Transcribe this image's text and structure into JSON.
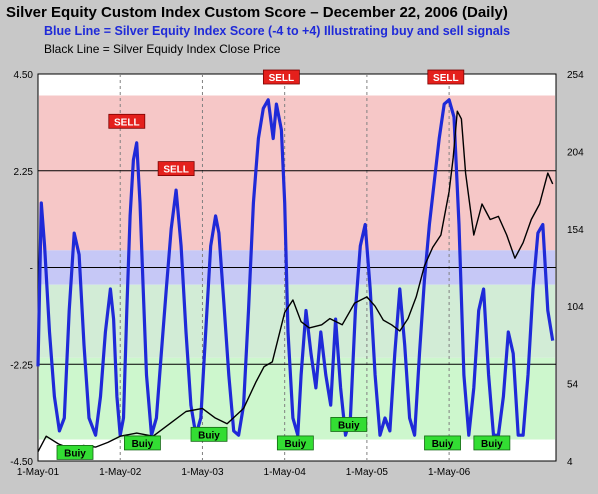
{
  "chart_data": {
    "type": "line",
    "title": "Silver Equity Custom Index Custom Score – December 22, 2006 (Daily)",
    "subtitle_blue": "Blue Line = Silver Equity Index Score (-4 to +4) Illustrating buy and sell signals",
    "subtitle_black": "Black Line = Silver Equidy Index Close Price",
    "x_ticks": [
      "1-May-01",
      "1-May-02",
      "1-May-03",
      "1-May-04",
      "1-May-05",
      "1-May-06"
    ],
    "y_left": {
      "ticks": [
        "4.50",
        "2.25",
        "-",
        "-2.25",
        "-4.50"
      ],
      "range": [
        -4.5,
        4.5
      ]
    },
    "y_right": {
      "ticks": [
        "254",
        "204",
        "154",
        "104",
        "54",
        "4"
      ],
      "range": [
        4,
        254
      ]
    },
    "x_range": [
      0,
      6.3
    ],
    "bands": [
      {
        "from": 0.4,
        "to": 4.0,
        "color": "#f6c7c7"
      },
      {
        "from": -0.4,
        "to": 0.4,
        "color": "#c6c8f6"
      },
      {
        "from": -2.1,
        "to": -0.4,
        "color": "#d2ecd6"
      },
      {
        "from": -4.0,
        "to": -2.1,
        "color": "#cdf7cd"
      }
    ],
    "reference_lines": [
      2.25,
      0,
      -2.25
    ],
    "series": [
      {
        "color": "#1f2ad8",
        "axis": "left",
        "x": [
          0.0,
          0.04,
          0.08,
          0.14,
          0.2,
          0.26,
          0.32,
          0.38,
          0.44,
          0.5,
          0.56,
          0.62,
          0.7,
          0.76,
          0.82,
          0.88,
          0.92,
          0.96,
          1.0,
          1.04,
          1.08,
          1.12,
          1.16,
          1.2,
          1.24,
          1.28,
          1.32,
          1.38,
          1.44,
          1.5,
          1.56,
          1.62,
          1.68,
          1.74,
          1.8,
          1.86,
          1.92,
          1.98,
          2.04,
          2.1,
          2.16,
          2.2,
          2.26,
          2.32,
          2.38,
          2.44,
          2.5,
          2.56,
          2.62,
          2.68,
          2.74,
          2.8,
          2.86,
          2.9,
          2.96,
          3.0,
          3.04,
          3.1,
          3.16,
          3.2,
          3.26,
          3.32,
          3.38,
          3.44,
          3.5,
          3.56,
          3.62,
          3.68,
          3.74,
          3.8,
          3.86,
          3.92,
          3.98,
          4.04,
          4.1,
          4.16,
          4.22,
          4.28,
          4.34,
          4.4,
          4.46,
          4.52,
          4.58,
          4.64,
          4.7,
          4.76,
          4.82,
          4.88,
          4.94,
          5.0,
          5.06,
          5.12,
          5.18,
          5.24,
          5.3,
          5.36,
          5.42,
          5.48,
          5.54,
          5.6,
          5.66,
          5.72,
          5.78,
          5.84,
          5.9,
          5.96,
          6.02,
          6.08,
          6.14,
          6.2,
          6.26
        ],
        "y": [
          -2.3,
          1.5,
          0.5,
          -1.5,
          -3.0,
          -3.8,
          -3.5,
          -1.0,
          0.8,
          0.3,
          -1.8,
          -3.5,
          -3.9,
          -3.0,
          -1.5,
          -0.5,
          -1.2,
          -3.0,
          -3.9,
          -3.5,
          -1.0,
          1.2,
          2.5,
          2.9,
          1.5,
          -0.5,
          -2.5,
          -3.9,
          -3.5,
          -2.0,
          -0.5,
          0.9,
          1.8,
          0.5,
          -1.5,
          -3.2,
          -3.9,
          -3.5,
          -1.5,
          0.5,
          1.2,
          0.8,
          -0.8,
          -2.5,
          -3.8,
          -3.9,
          -3.2,
          -1.0,
          1.5,
          3.0,
          3.7,
          3.9,
          3.0,
          3.8,
          3.2,
          1.5,
          -1.5,
          -3.5,
          -3.9,
          -2.5,
          -1.0,
          -2.0,
          -2.8,
          -1.5,
          -2.5,
          -3.2,
          -1.2,
          -2.8,
          -3.9,
          -3.5,
          -1.0,
          0.5,
          1.0,
          -0.5,
          -2.5,
          -3.9,
          -3.5,
          -3.8,
          -2.0,
          -0.5,
          -1.8,
          -3.5,
          -3.9,
          -2.0,
          -0.3,
          1.0,
          2.0,
          3.0,
          3.8,
          3.9,
          3.5,
          1.0,
          -2.5,
          -3.9,
          -2.8,
          -1.0,
          -0.5,
          -2.5,
          -3.9,
          -3.9,
          -3.0,
          -1.5,
          -2.0,
          -3.9,
          -3.9,
          -2.5,
          -0.5,
          0.8,
          1.0,
          -1.0,
          -1.7
        ]
      },
      {
        "color": "#000000",
        "axis": "right",
        "x": [
          0.0,
          0.1,
          0.25,
          0.4,
          0.55,
          0.7,
          0.85,
          1.0,
          1.2,
          1.4,
          1.6,
          1.8,
          2.0,
          2.15,
          2.3,
          2.5,
          2.65,
          2.75,
          2.85,
          3.0,
          3.1,
          3.2,
          3.3,
          3.45,
          3.55,
          3.7,
          3.85,
          4.0,
          4.1,
          4.2,
          4.3,
          4.4,
          4.5,
          4.6,
          4.7,
          4.8,
          4.9,
          5.0,
          5.05,
          5.1,
          5.15,
          5.2,
          5.3,
          5.4,
          5.5,
          5.6,
          5.7,
          5.8,
          5.9,
          6.0,
          6.1,
          6.2,
          6.26
        ],
        "y": [
          10,
          20,
          15,
          12,
          14,
          13,
          16,
          20,
          22,
          20,
          28,
          36,
          38,
          32,
          28,
          38,
          55,
          65,
          68,
          100,
          108,
          94,
          90,
          92,
          96,
          92,
          106,
          110,
          104,
          95,
          92,
          88,
          96,
          110,
          130,
          142,
          150,
          178,
          200,
          230,
          225,
          190,
          150,
          170,
          160,
          162,
          150,
          135,
          145,
          160,
          170,
          190,
          183
        ]
      }
    ],
    "labels": [
      {
        "text": "SELL",
        "kind": "sell",
        "x": 1.08,
        "y": 3.4
      },
      {
        "text": "SELL",
        "kind": "sell",
        "x": 1.68,
        "y": 2.3
      },
      {
        "text": "SELL",
        "kind": "sell",
        "x": 2.96,
        "y": 4.43
      },
      {
        "text": "SELL",
        "kind": "sell",
        "x": 4.96,
        "y": 4.43
      },
      {
        "text": "Buiy",
        "kind": "buy",
        "x": 0.45,
        "y": -4.3
      },
      {
        "text": "Buiy",
        "kind": "buy",
        "x": 1.27,
        "y": -4.08
      },
      {
        "text": "Buiy",
        "kind": "buy",
        "x": 2.08,
        "y": -3.88
      },
      {
        "text": "Buiy",
        "kind": "buy",
        "x": 3.13,
        "y": -4.08
      },
      {
        "text": "Buiy",
        "kind": "buy",
        "x": 3.78,
        "y": -3.65
      },
      {
        "text": "Buiy",
        "kind": "buy",
        "x": 4.92,
        "y": -4.08
      },
      {
        "text": "Buiy",
        "kind": "buy",
        "x": 5.52,
        "y": -4.08
      }
    ],
    "grid": true
  }
}
